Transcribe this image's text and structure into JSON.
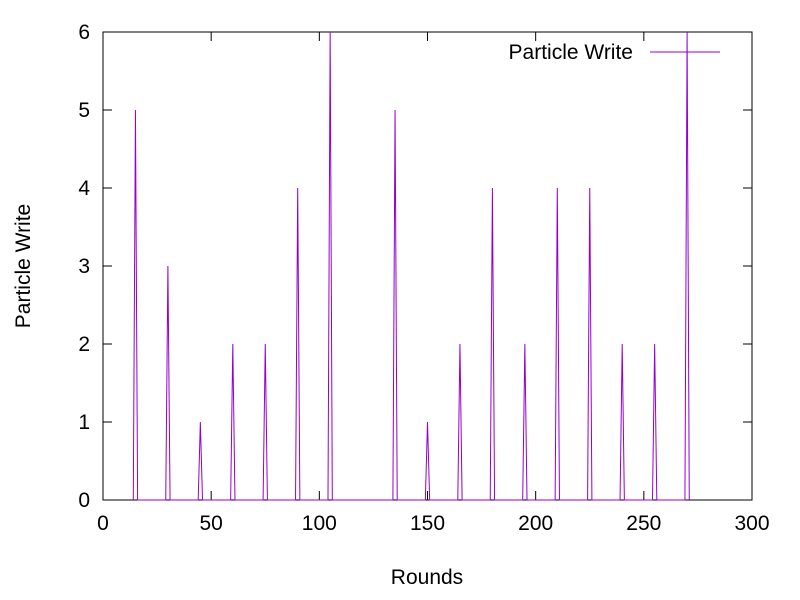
{
  "chart_data": {
    "type": "line",
    "title": "",
    "xlabel": "Rounds",
    "ylabel": "Particle Write",
    "xlim": [
      0,
      300
    ],
    "ylim": [
      0,
      6
    ],
    "xticks": [
      0,
      50,
      100,
      150,
      200,
      250,
      300
    ],
    "yticks": [
      0,
      1,
      2,
      3,
      4,
      5,
      6
    ],
    "grid": false,
    "legend": {
      "position": "top-right"
    },
    "colors": {
      "series": "#9400d3",
      "axes": "#000000"
    },
    "series": [
      {
        "name": "Particle Write",
        "x": [
          14,
          15,
          16,
          29,
          30,
          31,
          44,
          45,
          46,
          59,
          60,
          61,
          74,
          75,
          76,
          89,
          90,
          91,
          104,
          105,
          106,
          134,
          135,
          136,
          149,
          150,
          151,
          164,
          165,
          166,
          179,
          180,
          181,
          194,
          195,
          196,
          209,
          210,
          211,
          224,
          225,
          226,
          239,
          240,
          241,
          254,
          255,
          256,
          269,
          270,
          271
        ],
        "y": [
          0,
          5,
          0,
          0,
          3,
          0,
          0,
          1,
          0,
          0,
          2,
          0,
          0,
          2,
          0,
          0,
          4,
          0,
          0,
          6,
          0,
          0,
          5,
          0,
          0,
          1,
          0,
          0,
          2,
          0,
          0,
          4,
          0,
          0,
          2,
          0,
          0,
          4,
          0,
          0,
          4,
          0,
          0,
          2,
          0,
          0,
          2,
          0,
          0,
          6,
          0
        ]
      }
    ]
  }
}
